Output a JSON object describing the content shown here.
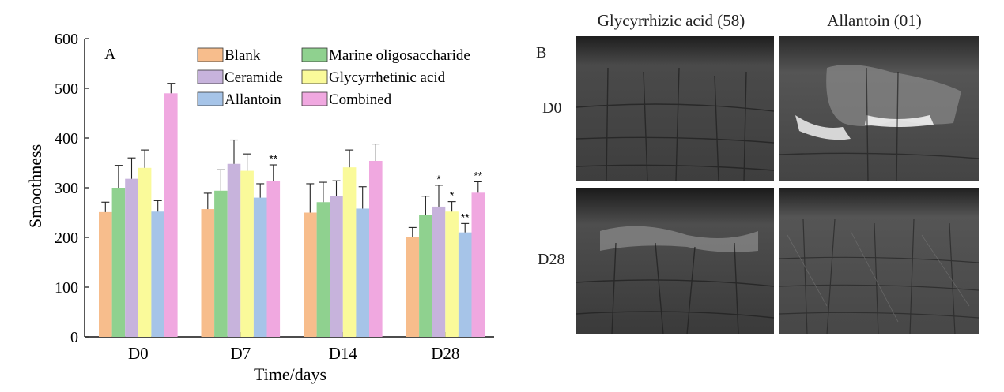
{
  "chart_data": {
    "type": "bar",
    "panel_label": "A",
    "categories": [
      "D0",
      "D7",
      "D14",
      "D28"
    ],
    "xlabel": "Time/days",
    "ylabel": "Smoothness",
    "ylim": [
      0,
      600
    ],
    "yticks": [
      0,
      100,
      200,
      300,
      400,
      500,
      600
    ],
    "grid": false,
    "legend_position": "top-right",
    "series": [
      {
        "name": "Blank",
        "color": "#f7bd8c",
        "values": [
          251,
          257,
          250,
          200
        ],
        "errors": [
          20,
          32,
          58,
          20
        ],
        "marks": [
          "",
          "",
          "",
          ""
        ]
      },
      {
        "name": "Marine oligosaccharide",
        "color": "#8fd18f",
        "values": [
          300,
          294,
          271,
          246
        ],
        "errors": [
          45,
          42,
          40,
          37
        ],
        "marks": [
          "",
          "",
          "",
          ""
        ]
      },
      {
        "name": "Ceramide",
        "color": "#c7b3dc",
        "values": [
          318,
          348,
          284,
          262
        ],
        "errors": [
          42,
          48,
          30,
          43
        ],
        "marks": [
          "",
          "",
          "",
          "*"
        ]
      },
      {
        "name": "Glycyrrhetinic acid",
        "color": "#fafa9a",
        "values": [
          340,
          334,
          341,
          252
        ],
        "errors": [
          36,
          34,
          35,
          20
        ],
        "marks": [
          "",
          "",
          "",
          "*"
        ]
      },
      {
        "name": "Allantoin",
        "color": "#a6c4e8",
        "values": [
          252,
          280,
          258,
          210
        ],
        "errors": [
          22,
          28,
          44,
          18
        ],
        "marks": [
          "",
          "",
          "",
          "**"
        ]
      },
      {
        "name": "Combined",
        "color": "#f0a8e0",
        "values": [
          490,
          314,
          354,
          290
        ],
        "errors": [
          20,
          32,
          34,
          22
        ],
        "marks": [
          "",
          "**",
          "",
          "**"
        ]
      }
    ]
  },
  "panel_b": {
    "label": "B",
    "columns": [
      "Glycyrrhizic acid (58)",
      "Allantoin (01)"
    ],
    "rows": [
      "D0",
      "D28"
    ]
  }
}
